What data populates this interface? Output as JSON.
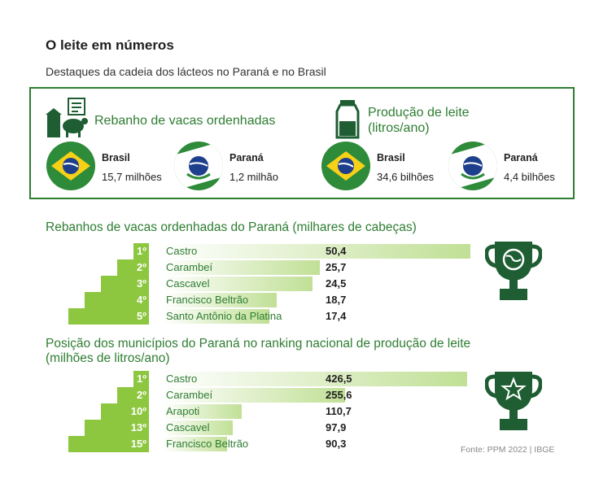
{
  "header": {
    "title": "O leite em números",
    "subtitle": "Destaques da cadeia dos lácteos no Paraná e no Brasil"
  },
  "stats": {
    "herd": {
      "heading": "Rebanho de vacas ordenhadas",
      "icon": "cow-barn-icon",
      "brasil_label": "Brasil",
      "brasil_value": "15,7 milhões",
      "parana_label": "Paraná",
      "parana_value": "1,2 milhão"
    },
    "milk": {
      "heading_line1": "Produção de leite",
      "heading_line2": "(litros/ano)",
      "icon": "milk-bottle-icon",
      "brasil_label": "Brasil",
      "brasil_value": "34,6 bilhões",
      "parana_label": "Paraná",
      "parana_value": "4,4 bilhões"
    }
  },
  "colors": {
    "accent": "#2e7d32",
    "step": "#8dc63f",
    "trophy": "#1e5e32"
  },
  "chart_data": [
    {
      "type": "bar",
      "title": "Rebanhos de vacas ordenhadas do Paraná (milhares de cabeças)",
      "ranks": [
        "1º",
        "2º",
        "3º",
        "4º",
        "5º"
      ],
      "categories": [
        "Castro",
        "Carambeí",
        "Cascavel",
        "Francisco Beltrão",
        "Santo Antônio da Platina"
      ],
      "values": [
        50.4,
        25.7,
        24.5,
        18.7,
        17.4
      ],
      "value_labels": [
        "50,4",
        "25,7",
        "24,5",
        "18,7",
        "17,4"
      ],
      "icon": "trophy-globe-icon"
    },
    {
      "type": "bar",
      "title_line1": "Posição dos municípios do Paraná no ranking nacional de produção de leite",
      "title_line2": "(milhões de litros/ano)",
      "ranks": [
        "1º",
        "2º",
        "10º",
        "13º",
        "15º"
      ],
      "categories": [
        "Castro",
        "Carambeí",
        "Arapoti",
        "Cascavel",
        "Francisco Beltrão"
      ],
      "values": [
        426.5,
        255.6,
        110.7,
        97.9,
        90.3
      ],
      "value_labels": [
        "426,5",
        "255,6",
        "110,7",
        "97,9",
        "90,3"
      ],
      "icon": "trophy-star-icon"
    }
  ],
  "source": "Fonte: PPM 2022 | IBGE"
}
